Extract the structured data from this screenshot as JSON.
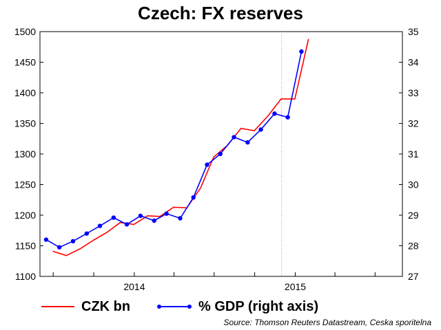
{
  "chart_data": {
    "type": "line",
    "title": "Czech: FX reserves",
    "source": "Source: Thomson Reuters Datastream, Ceska sporitelna",
    "x_axis": {
      "start": "2013-06",
      "end": "2015-09",
      "tick_labels": [
        {
          "label": "2014",
          "date": "2014-01"
        },
        {
          "label": "2015",
          "date": "2015-01"
        }
      ],
      "gridline_at": "2014-12"
    },
    "y_left": {
      "min": 1100,
      "max": 1500,
      "step": 50,
      "tick_labels": [
        "1100",
        "1150",
        "1200",
        "1250",
        "1300",
        "1350",
        "1400",
        "1450",
        "1500"
      ]
    },
    "y_right": {
      "min": 27,
      "max": 35,
      "step": 1,
      "tick_labels": [
        "27",
        "28",
        "29",
        "30",
        "31",
        "32",
        "33",
        "34",
        "35"
      ]
    },
    "series": [
      {
        "name": "CZK bn",
        "axis": "left",
        "color": "#ff0000",
        "markers": false,
        "points": [
          {
            "x": "2013-06-30",
            "y": 1141
          },
          {
            "x": "2013-07-31",
            "y": 1134
          },
          {
            "x": "2013-08-31",
            "y": 1145
          },
          {
            "x": "2013-09-30",
            "y": 1159
          },
          {
            "x": "2013-10-31",
            "y": 1172
          },
          {
            "x": "2013-11-30",
            "y": 1188
          },
          {
            "x": "2013-12-31",
            "y": 1185
          },
          {
            "x": "2014-01-31",
            "y": 1199
          },
          {
            "x": "2014-02-28",
            "y": 1198
          },
          {
            "x": "2014-03-31",
            "y": 1213
          },
          {
            "x": "2014-04-30",
            "y": 1212
          },
          {
            "x": "2014-05-31",
            "y": 1244
          },
          {
            "x": "2014-06-30",
            "y": 1295
          },
          {
            "x": "2014-07-31",
            "y": 1314
          },
          {
            "x": "2014-08-31",
            "y": 1342
          },
          {
            "x": "2014-09-30",
            "y": 1338
          },
          {
            "x": "2014-10-31",
            "y": 1362
          },
          {
            "x": "2014-11-30",
            "y": 1390
          },
          {
            "x": "2014-12-31",
            "y": 1390
          },
          {
            "x": "2015-01-31",
            "y": 1488
          }
        ]
      },
      {
        "name": "% GDP (right axis)",
        "axis": "right",
        "color": "#0000ff",
        "markers": true,
        "points": [
          {
            "x": "2013-06-15",
            "y": 28.2
          },
          {
            "x": "2013-07-15",
            "y": 27.95
          },
          {
            "x": "2013-08-15",
            "y": 28.15
          },
          {
            "x": "2013-09-15",
            "y": 28.4
          },
          {
            "x": "2013-10-15",
            "y": 28.65
          },
          {
            "x": "2013-11-15",
            "y": 28.92
          },
          {
            "x": "2013-12-15",
            "y": 28.7
          },
          {
            "x": "2014-01-15",
            "y": 28.98
          },
          {
            "x": "2014-02-15",
            "y": 28.82
          },
          {
            "x": "2014-03-15",
            "y": 29.05
          },
          {
            "x": "2014-04-15",
            "y": 28.9
          },
          {
            "x": "2014-05-15",
            "y": 29.58
          },
          {
            "x": "2014-06-15",
            "y": 30.65
          },
          {
            "x": "2014-07-15",
            "y": 31.0
          },
          {
            "x": "2014-08-15",
            "y": 31.55
          },
          {
            "x": "2014-09-15",
            "y": 31.38
          },
          {
            "x": "2014-10-15",
            "y": 31.8
          },
          {
            "x": "2014-11-15",
            "y": 32.32
          },
          {
            "x": "2014-12-15",
            "y": 32.2
          },
          {
            "x": "2015-01-15",
            "y": 34.35
          }
        ]
      }
    ],
    "legend": "bottom",
    "grid": false
  }
}
